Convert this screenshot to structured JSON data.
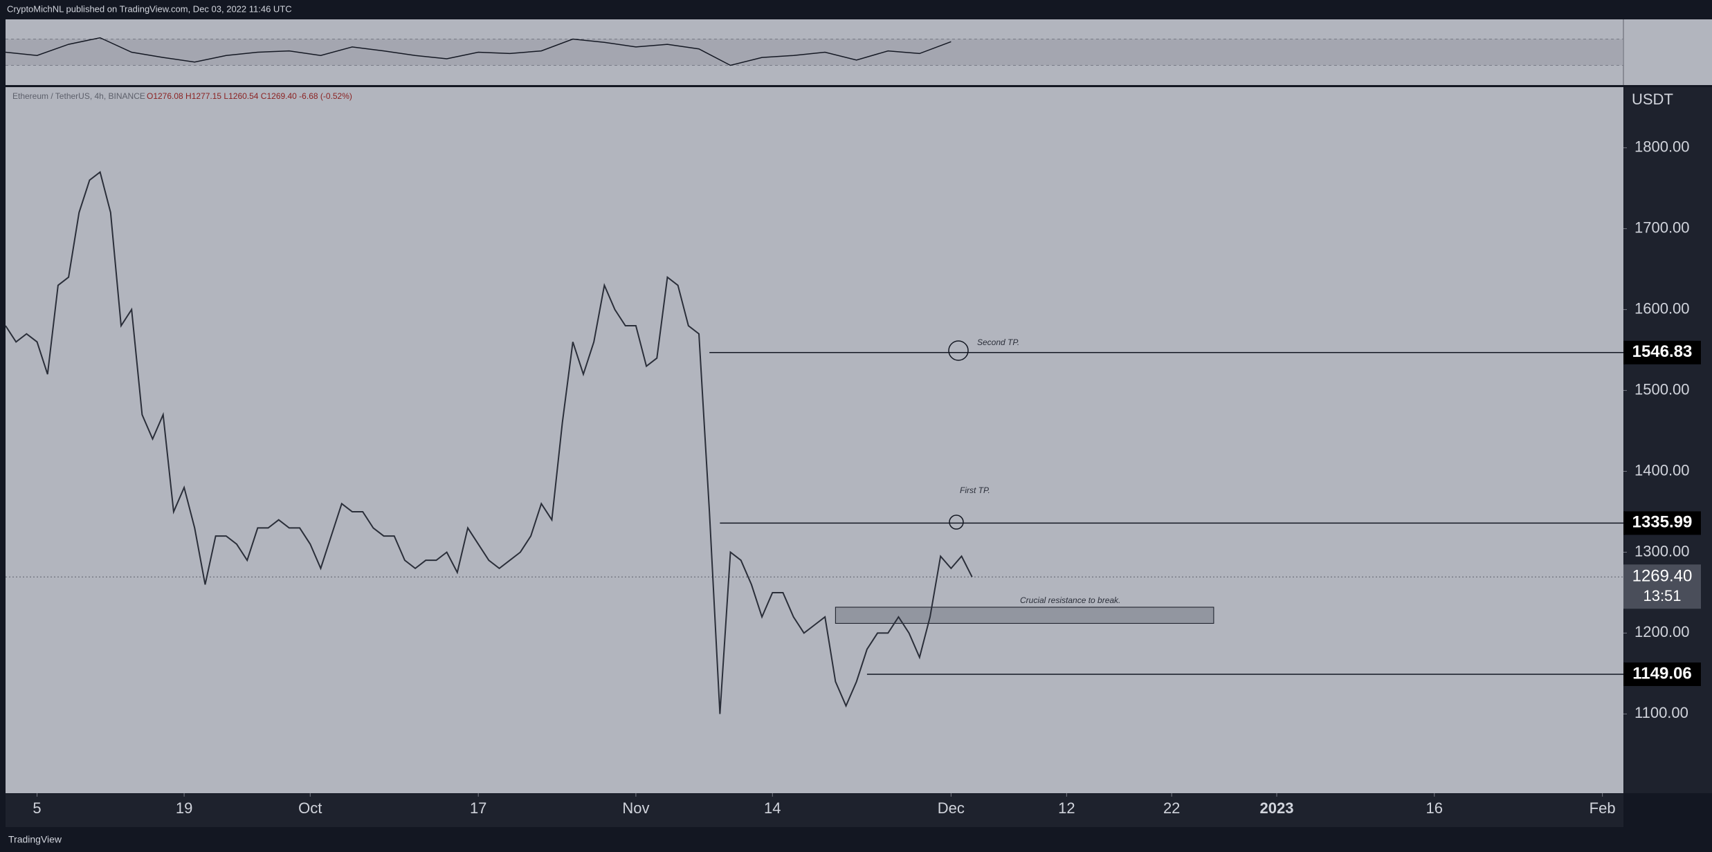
{
  "header": "CryptoMichNL published on TradingView.com, Dec 03, 2022 11:46 UTC",
  "footer": "TradingView",
  "chart_data": {
    "type": "line",
    "symbol": "Ethereum / TetherUS, 4h, BINANCE",
    "ohlc": "O1276.08 H1277.15 L1260.54 C1269.40 -6.68 (-0.52%)",
    "y_label": "USDT",
    "grid": false,
    "x": [
      "2022-09-02",
      "2022-09-03",
      "2022-09-04",
      "2022-09-05",
      "2022-09-06",
      "2022-09-07",
      "2022-09-08",
      "2022-09-09",
      "2022-09-10",
      "2022-09-11",
      "2022-09-12",
      "2022-09-13",
      "2022-09-14",
      "2022-09-15",
      "2022-09-16",
      "2022-09-17",
      "2022-09-18",
      "2022-09-19",
      "2022-09-20",
      "2022-09-21",
      "2022-09-22",
      "2022-09-23",
      "2022-09-24",
      "2022-09-25",
      "2022-09-26",
      "2022-09-27",
      "2022-09-28",
      "2022-09-29",
      "2022-09-30",
      "2022-10-01",
      "2022-10-02",
      "2022-10-03",
      "2022-10-04",
      "2022-10-05",
      "2022-10-06",
      "2022-10-07",
      "2022-10-08",
      "2022-10-09",
      "2022-10-10",
      "2022-10-11",
      "2022-10-12",
      "2022-10-13",
      "2022-10-14",
      "2022-10-15",
      "2022-10-16",
      "2022-10-17",
      "2022-10-18",
      "2022-10-19",
      "2022-10-20",
      "2022-10-21",
      "2022-10-22",
      "2022-10-23",
      "2022-10-24",
      "2022-10-25",
      "2022-10-26",
      "2022-10-27",
      "2022-10-28",
      "2022-10-29",
      "2022-10-30",
      "2022-10-31",
      "2022-11-01",
      "2022-11-02",
      "2022-11-03",
      "2022-11-04",
      "2022-11-05",
      "2022-11-06",
      "2022-11-07",
      "2022-11-08",
      "2022-11-09",
      "2022-11-10",
      "2022-11-11",
      "2022-11-12",
      "2022-11-13",
      "2022-11-14",
      "2022-11-15",
      "2022-11-16",
      "2022-11-17",
      "2022-11-18",
      "2022-11-19",
      "2022-11-20",
      "2022-11-21",
      "2022-11-22",
      "2022-11-23",
      "2022-11-24",
      "2022-11-25",
      "2022-11-26",
      "2022-11-27",
      "2022-11-28",
      "2022-11-29",
      "2022-11-30",
      "2022-12-01",
      "2022-12-02",
      "2022-12-03"
    ],
    "series": [
      {
        "name": "ETHUSDT",
        "color": "#2a2e39",
        "values": [
          1580,
          1560,
          1570,
          1560,
          1520,
          1630,
          1640,
          1720,
          1760,
          1770,
          1720,
          1580,
          1600,
          1470,
          1440,
          1470,
          1350,
          1380,
          1330,
          1260,
          1320,
          1320,
          1310,
          1290,
          1330,
          1330,
          1340,
          1330,
          1330,
          1310,
          1280,
          1320,
          1360,
          1350,
          1350,
          1330,
          1320,
          1320,
          1290,
          1280,
          1290,
          1290,
          1300,
          1275,
          1330,
          1310,
          1290,
          1280,
          1290,
          1300,
          1320,
          1360,
          1340,
          1460,
          1560,
          1520,
          1560,
          1630,
          1600,
          1580,
          1580,
          1530,
          1540,
          1640,
          1630,
          1580,
          1570,
          1350,
          1100,
          1300,
          1290,
          1260,
          1220,
          1250,
          1250,
          1220,
          1200,
          1210,
          1220,
          1140,
          1110,
          1140,
          1180,
          1200,
          1200,
          1220,
          1200,
          1170,
          1220,
          1295,
          1280,
          1295,
          1269.4
        ]
      }
    ],
    "xlim": [
      "2022-09-02",
      "2023-02-03"
    ],
    "xticks": [
      {
        "value": "2022-09-05",
        "label": "5"
      },
      {
        "value": "2022-09-19",
        "label": "19"
      },
      {
        "value": "2022-10-01",
        "label": "Oct"
      },
      {
        "value": "2022-10-17",
        "label": "17"
      },
      {
        "value": "2022-11-01",
        "label": "Nov"
      },
      {
        "value": "2022-11-14",
        "label": "14"
      },
      {
        "value": "2022-12-01",
        "label": "Dec"
      },
      {
        "value": "2022-12-12",
        "label": "12"
      },
      {
        "value": "2022-12-22",
        "label": "22"
      },
      {
        "value": "2023-01-01",
        "label": "2023"
      },
      {
        "value": "2023-01-16",
        "label": "16"
      },
      {
        "value": "2023-02-01",
        "label": "Feb"
      }
    ],
    "ylim": [
      1002,
      1875
    ],
    "yticks": [
      {
        "value": 1100,
        "label": "1100.00"
      },
      {
        "value": 1200,
        "label": "1200.00"
      },
      {
        "value": 1300,
        "label": "1300.00"
      },
      {
        "value": 1400,
        "label": "1400.00"
      },
      {
        "value": 1500,
        "label": "1500.00"
      },
      {
        "value": 1600,
        "label": "1600.00"
      },
      {
        "value": 1700,
        "label": "1700.00"
      },
      {
        "value": 1800,
        "label": "1800.00"
      }
    ],
    "levels": [
      {
        "value": 1546.83,
        "start": "2022-11-08"
      },
      {
        "value": 1335.99,
        "start": "2022-11-09"
      },
      {
        "value": 1149.06,
        "start": "2022-11-23"
      }
    ],
    "zone": {
      "top": 1232,
      "bottom": 1212,
      "start": "2022-11-20",
      "end": "2022-12-26"
    },
    "last_price": {
      "value": 1269.4,
      "label": "1269.40"
    },
    "countdown": "13:51",
    "annotations": [
      "Second TP.",
      "First TP.",
      "Crucial resistance to break."
    ],
    "rsi": {
      "ylim": [
        0,
        100
      ],
      "bands": [
        30,
        70
      ],
      "x": [
        "2022-09-02",
        "2022-09-05",
        "2022-09-08",
        "2022-09-11",
        "2022-09-14",
        "2022-09-17",
        "2022-09-20",
        "2022-09-23",
        "2022-09-26",
        "2022-09-29",
        "2022-10-02",
        "2022-10-05",
        "2022-10-08",
        "2022-10-11",
        "2022-10-14",
        "2022-10-17",
        "2022-10-20",
        "2022-10-23",
        "2022-10-26",
        "2022-10-29",
        "2022-11-01",
        "2022-11-04",
        "2022-11-07",
        "2022-11-10",
        "2022-11-13",
        "2022-11-16",
        "2022-11-19",
        "2022-11-22",
        "2022-11-25",
        "2022-11-28",
        "2022-12-01"
      ],
      "values": [
        50,
        45,
        62,
        72,
        50,
        42,
        35,
        45,
        50,
        52,
        45,
        58,
        52,
        45,
        40,
        50,
        48,
        52,
        70,
        65,
        58,
        62,
        55,
        30,
        42,
        45,
        50,
        38,
        52,
        48,
        66
      ]
    }
  }
}
